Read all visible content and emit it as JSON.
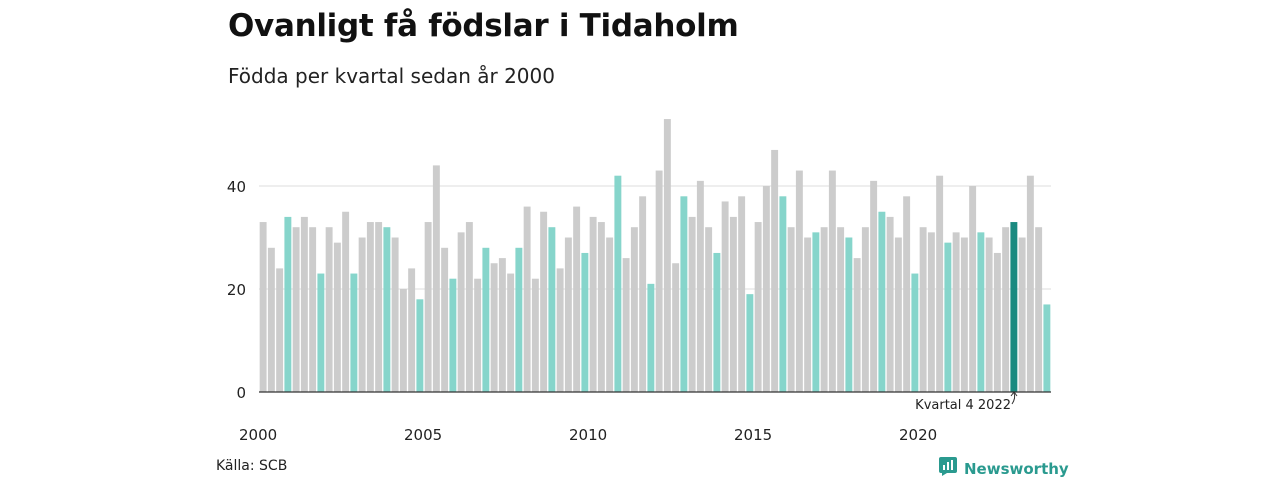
{
  "title": "Ovanligt få födslar i Tidaholm",
  "subtitle": "Födda per kvartal sedan år 2000",
  "source": "Källa: SCB",
  "brand": {
    "name": "Newsworthy",
    "icon": "newsworthy-logo-icon"
  },
  "colors": {
    "other": "#cccccc",
    "quarter4": "#86d5cb",
    "highlight": "#1a8a80",
    "grid": "#dddddd",
    "axis": "#333333"
  },
  "chart_data": {
    "type": "bar",
    "title": "Ovanligt få födslar i Tidaholm",
    "subtitle": "Födda per kvartal sedan år 2000",
    "xlabel": "",
    "ylabel": "",
    "ylim": [
      0,
      55
    ],
    "y_ticks": [
      "0",
      "20",
      "40"
    ],
    "x_tick_labels": [
      "2000",
      "2005",
      "2010",
      "2015",
      "2020"
    ],
    "grid": true,
    "start_year": 2000,
    "values": [
      33,
      28,
      24,
      34,
      32,
      34,
      32,
      23,
      32,
      29,
      35,
      23,
      30,
      33,
      33,
      32,
      30,
      20,
      24,
      18,
      33,
      44,
      28,
      22,
      31,
      33,
      22,
      28,
      25,
      26,
      23,
      28,
      36,
      22,
      35,
      32,
      24,
      30,
      36,
      27,
      34,
      33,
      30,
      42,
      26,
      32,
      38,
      21,
      43,
      53,
      25,
      38,
      34,
      41,
      32,
      27,
      37,
      34,
      38,
      19,
      33,
      40,
      47,
      38,
      32,
      43,
      30,
      31,
      32,
      43,
      32,
      30,
      26,
      32,
      41,
      35,
      34,
      30,
      38,
      23,
      32,
      31,
      42,
      29,
      31,
      30,
      40,
      31,
      30,
      27,
      32,
      33,
      30,
      42,
      32,
      17
    ],
    "highlight_index": 91,
    "annotation": "Kvartal 4 2022"
  }
}
